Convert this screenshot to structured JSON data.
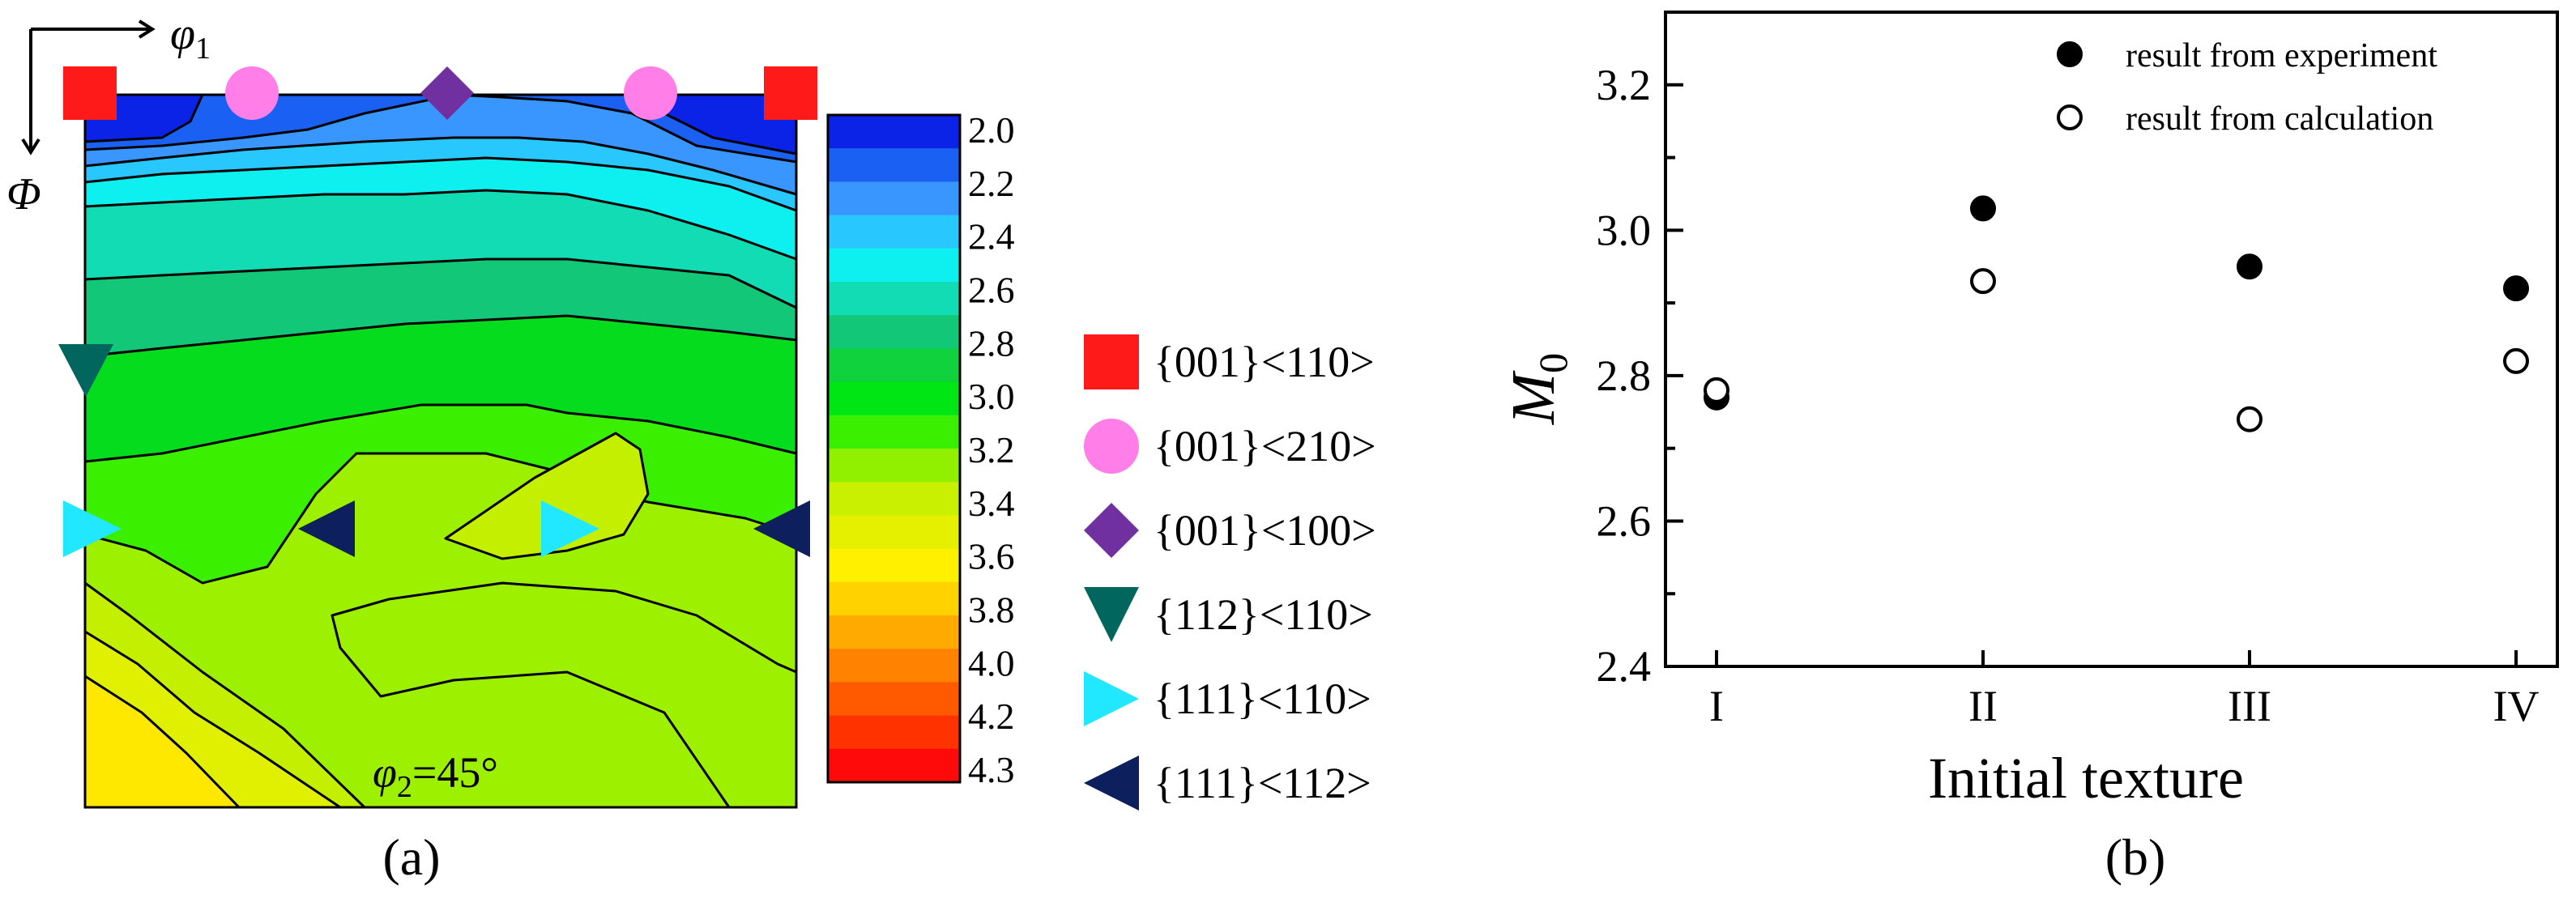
{
  "figure": {
    "panel_a_caption": "(a)",
    "panel_b_caption": "(b)"
  },
  "contour_panel": {
    "axis_x_symbol": "φ",
    "axis_x_sub": "1",
    "axis_y_symbol": "Φ",
    "section_symbol": "φ",
    "section_sub": "2",
    "section_value": "=45°",
    "colorbar_ticks": [
      "2.0",
      "2.2",
      "2.4",
      "2.6",
      "2.8",
      "3.0",
      "3.2",
      "3.4",
      "3.6",
      "3.8",
      "4.0",
      "4.2",
      "4.3"
    ],
    "colorbar_colors": [
      "#0a23e6",
      "#1a60f2",
      "#3a96ff",
      "#28c8ff",
      "#0ef0f0",
      "#12dcb4",
      "#12c878",
      "#0fd23c",
      "#00e614",
      "#3af000",
      "#90f000",
      "#c8f000",
      "#e4f000",
      "#fff000",
      "#ffd200",
      "#ffaa00",
      "#ff8200",
      "#ff5a00",
      "#ff3200",
      "#ff0a0a"
    ],
    "legend": [
      {
        "label": "{001}<110>",
        "shape": "square",
        "color": "#ff1a1a"
      },
      {
        "label": "{001}<210>",
        "shape": "circle",
        "color": "#ff7ee8"
      },
      {
        "label": "{001}<100>",
        "shape": "diamond",
        "color": "#7030a0"
      },
      {
        "label": "{112}<110>",
        "shape": "triangle-down",
        "color": "#00665e"
      },
      {
        "label": "{111}<110>",
        "shape": "triangle-right",
        "color": "#22e8ff"
      },
      {
        "label": "{111}<112>",
        "shape": "triangle-left",
        "color": "#0d1f5c"
      }
    ]
  },
  "chart_data": {
    "type": "scatter",
    "title": "",
    "xlabel": "Initial texture",
    "ylabel_symbol": "M",
    "ylabel_sub": "0",
    "categories": [
      "I",
      "II",
      "III",
      "IV"
    ],
    "ylim": [
      2.4,
      3.3
    ],
    "yticks": [
      2.4,
      2.6,
      2.8,
      3.0,
      3.2
    ],
    "ytick_labels": [
      "2.4",
      "2.6",
      "2.8",
      "3.0",
      "3.2"
    ],
    "legend_position": "top-right",
    "series": [
      {
        "name": "result from experiment",
        "marker": "filled-circle",
        "values": [
          2.77,
          3.03,
          2.95,
          2.92
        ]
      },
      {
        "name": "result from calculation",
        "marker": "open-circle",
        "values": [
          2.78,
          2.93,
          2.74,
          2.82
        ]
      }
    ]
  }
}
